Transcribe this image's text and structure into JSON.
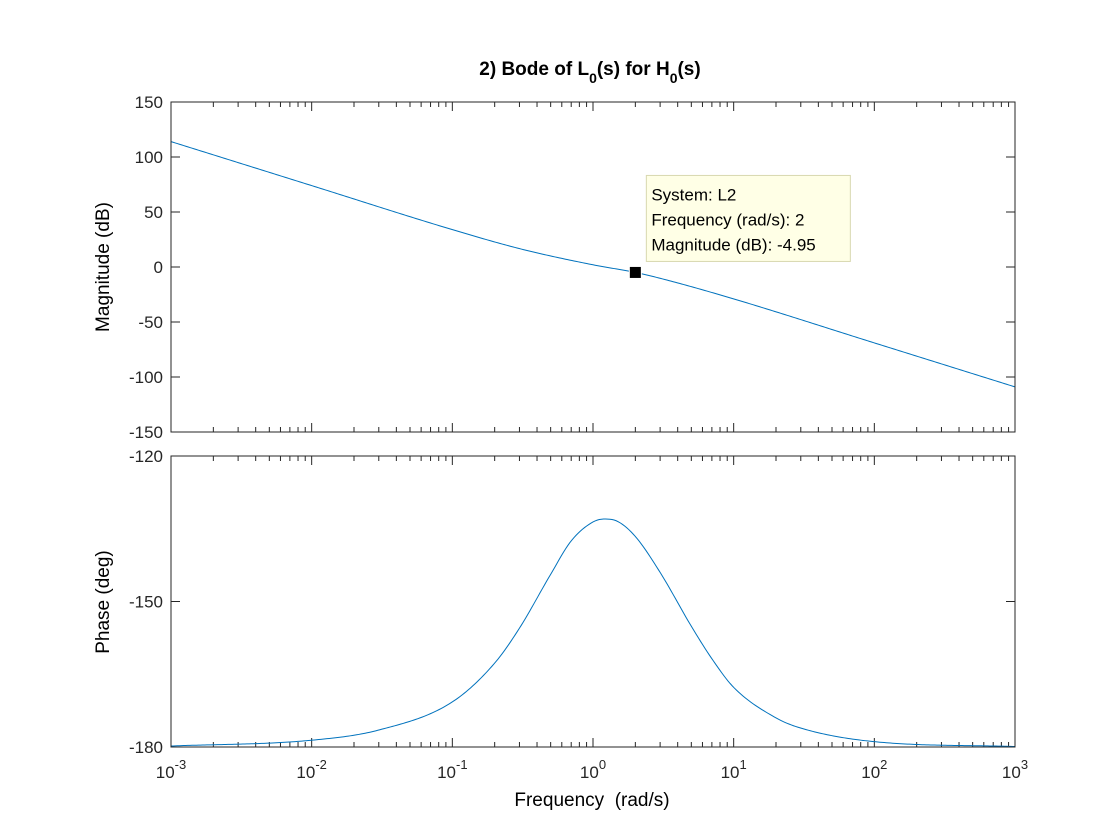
{
  "chart_data": [
    {
      "type": "line",
      "title": "2) Bode of L0(s) for H0(s)",
      "title_parts": [
        {
          "text": "2) Bode of L",
          "sub": false
        },
        {
          "text": "0",
          "sub": true
        },
        {
          "text": "(s) for H",
          "sub": false
        },
        {
          "text": "0",
          "sub": true
        },
        {
          "text": "(s)",
          "sub": false
        }
      ],
      "xscale": "log",
      "xlim": [
        0.001,
        1000
      ],
      "ylim": [
        -150,
        150
      ],
      "ylabel": "Magnitude (dB)",
      "xlabel": "",
      "yticks": [
        150,
        100,
        50,
        0,
        -50,
        -100,
        -150
      ],
      "grid": false,
      "line_color": "#0072BD",
      "series": [
        {
          "x": [
            0.001,
            0.01,
            0.1,
            0.316,
            1,
            2,
            3.16,
            10,
            100,
            1000
          ],
          "y": [
            114,
            74,
            34,
            16,
            2,
            -4.95,
            -11,
            -29,
            -69,
            -109
          ]
        }
      ],
      "datatip": {
        "x": 2,
        "y": -4.95,
        "lines": [
          "System: L2",
          "Frequency (rad/s): 2",
          "Magnitude (dB): -4.95"
        ]
      }
    },
    {
      "type": "line",
      "xscale": "log",
      "xlim": [
        0.001,
        1000
      ],
      "ylim": [
        -180,
        -120
      ],
      "ylabel": "Phase (deg)",
      "xlabel": "Frequency  (rad/s)",
      "yticks": [
        -120,
        -150,
        -180
      ],
      "xticks": [
        {
          "base": "10",
          "exp": "-3"
        },
        {
          "base": "10",
          "exp": "-2"
        },
        {
          "base": "10",
          "exp": "-1"
        },
        {
          "base": "10",
          "exp": "0"
        },
        {
          "base": "10",
          "exp": "1"
        },
        {
          "base": "10",
          "exp": "2"
        },
        {
          "base": "10",
          "exp": "3"
        }
      ],
      "grid": false,
      "line_color": "#0072BD",
      "series": [
        {
          "x": [
            0.001,
            0.01,
            0.03,
            0.1,
            0.2,
            0.3,
            0.5,
            0.7,
            1,
            1.2,
            1.5,
            2,
            3,
            5,
            7,
            10,
            20,
            30,
            100,
            1000
          ],
          "y": [
            -179.8,
            -178.6,
            -176.5,
            -170.7,
            -162.7,
            -155.5,
            -144.4,
            -137.5,
            -133.6,
            -133.0,
            -133.5,
            -136.6,
            -144.0,
            -155.1,
            -161.8,
            -167.7,
            -174.0,
            -176.1,
            -178.9,
            -179.9
          ]
        }
      ]
    }
  ]
}
